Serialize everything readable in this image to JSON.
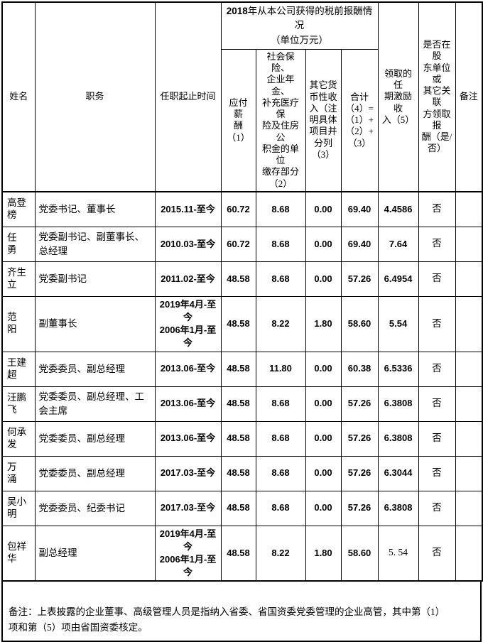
{
  "table": {
    "title_group": {
      "year": "2018",
      "rest_line1": "年从本公司获得的税前报酬情况",
      "line2": "（单位万元）"
    },
    "header": {
      "name": "姓名",
      "position": "职务",
      "term": "任职起止时间",
      "salary": "应付 薪\n酬\n（1）",
      "insurance": "社会保险、\n企业年金、\n补充医疗保\n险及住房公\n积金的单位\n缴存部分\n（2）",
      "other": "其它货\n币性收\n入（注\n明具体\n项目并\n分列\n（3）",
      "total": "合计\n（4）=\n（1）+\n（2）+\n（3）",
      "incentive": "领取的任\n期激励收\n入（5）",
      "shareholder": "是否在股\n东单位或\n其它关联\n方领取报\n酬（是/\n否）",
      "remark": "备注"
    },
    "rows": [
      {
        "name": "高登榜",
        "position": "党委书记、董事长",
        "term": "2015.11-至今",
        "salary": "60.72",
        "insurance": "8.68",
        "other": "0.00",
        "total": "69.40",
        "incentive": "4.4586",
        "shareholder": "否",
        "remark": ""
      },
      {
        "name": "任　勇",
        "position": "党委副书记、副董事长、总经理",
        "term": "2010.03-至今",
        "salary": "60.72",
        "insurance": "8.68",
        "other": "0.00",
        "total": "69.40",
        "incentive": "7.64",
        "shareholder": "否",
        "remark": ""
      },
      {
        "name": "齐生立",
        "position": "党委副书记",
        "term": "2011.02-至今",
        "salary": "48.58",
        "insurance": "8.68",
        "other": "0.00",
        "total": "57.26",
        "incentive": "6.4954",
        "shareholder": "否",
        "remark": ""
      },
      {
        "name": "范　阳",
        "position": "副董事长",
        "term": "2019年4月-至今\n2006年1月-至今",
        "salary": "48.58",
        "insurance": "8.22",
        "other": "1.80",
        "total": "58.60",
        "incentive": "5.54",
        "shareholder": "否",
        "remark": ""
      },
      {
        "name": "王建超",
        "position": "党委委员、副总经理",
        "term": "2013.06-至今",
        "salary": "48.58",
        "insurance": "11.80",
        "other": "0.00",
        "total": "60.38",
        "incentive": "6.5336",
        "shareholder": "否",
        "remark": ""
      },
      {
        "name": "汪鹏飞",
        "position": "党委委员、副总经理、工会主席",
        "term": "2013.06-至今",
        "salary": "48.58",
        "insurance": "8.68",
        "other": "0.00",
        "total": "57.26",
        "incentive": "6.3808",
        "shareholder": "否",
        "remark": ""
      },
      {
        "name": "何承发",
        "position": "党委委员、副总经理",
        "term": "2013.06-至今",
        "salary": "48.58",
        "insurance": "8.68",
        "other": "0.00",
        "total": "57.26",
        "incentive": "6.3808",
        "shareholder": "否",
        "remark": ""
      },
      {
        "name": "万　涌",
        "position": "党委委员、副总经理",
        "term": "2017.03-至今",
        "salary": "48.58",
        "insurance": "8.68",
        "other": "0.00",
        "total": "57.26",
        "incentive": "6.3044",
        "shareholder": "否",
        "remark": ""
      },
      {
        "name": "吴小明",
        "position": "党委委员、纪委书记",
        "term": "2017.03-至今",
        "salary": "48.58",
        "insurance": "8.68",
        "other": "0.00",
        "total": "57.26",
        "incentive": "6.3808",
        "shareholder": "否",
        "remark": ""
      },
      {
        "name": "包祥华",
        "position": "副总经理",
        "term": "2019年4月-至今\n2006年1月-至今",
        "salary": "48.58",
        "insurance": "8.22",
        "other": "1.80",
        "total": "58.60",
        "incentive": "5. 54",
        "incentive_style": "serif",
        "shareholder": "否",
        "remark": ""
      }
    ]
  },
  "footnote": "备注：上表披露的企业董事、高级管理人员是指纳入省委、省国资委党委管理的企业高管，其中第（1）项和第（5）项由省国资委核定。",
  "colors": {
    "border": "#000000",
    "text": "#000000",
    "cell_background": "#ffffff"
  }
}
